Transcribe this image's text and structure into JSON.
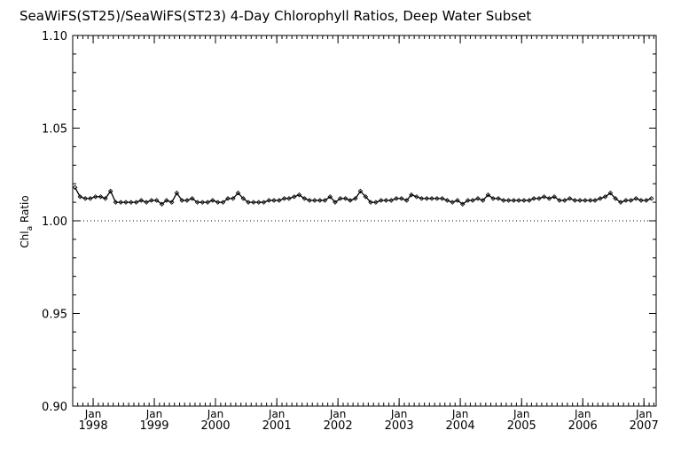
{
  "chart_data": {
    "type": "line",
    "title": "SeaWiFS(ST25)/SeaWiFS(ST23) 4-Day Chlorophyll Ratios, Deep Water Subset",
    "ylabel": "Chl",
    "ylabel_subscript": "a",
    "ylabel_suffix": " Ratio",
    "xlabel": "",
    "xlim": [
      "1997-09-01",
      "2007-03-15"
    ],
    "ylim": [
      0.9,
      1.1
    ],
    "yticks": [
      0.9,
      0.95,
      1.0,
      1.05,
      1.1
    ],
    "ytick_labels": [
      "0.90",
      "0.95",
      "1.00",
      "1.05",
      "1.10"
    ],
    "xticks": [
      {
        "date": "1998-01-01",
        "month": "Jan",
        "year": "1998"
      },
      {
        "date": "1999-01-01",
        "month": "Jan",
        "year": "1999"
      },
      {
        "date": "2000-01-01",
        "month": "Jan",
        "year": "2000"
      },
      {
        "date": "2001-01-01",
        "month": "Jan",
        "year": "2001"
      },
      {
        "date": "2002-01-01",
        "month": "Jan",
        "year": "2002"
      },
      {
        "date": "2003-01-01",
        "month": "Jan",
        "year": "2003"
      },
      {
        "date": "2004-01-01",
        "month": "Jan",
        "year": "2004"
      },
      {
        "date": "2005-01-01",
        "month": "Jan",
        "year": "2005"
      },
      {
        "date": "2006-01-01",
        "month": "Jan",
        "year": "2006"
      },
      {
        "date": "2007-01-01",
        "month": "Jan",
        "year": "2007"
      }
    ],
    "reference_line": {
      "y": 1.0,
      "style": "dotted"
    },
    "grid": false,
    "legend": "none",
    "line_color": "#000000",
    "marker": "diamond",
    "series": [
      {
        "x": [
          "1997-09-15",
          "1997-10-15",
          "1997-11-15",
          "1997-12-15",
          "1998-01-15",
          "1998-02-15",
          "1998-03-15",
          "1998-04-15",
          "1998-05-15",
          "1998-06-15",
          "1998-07-15",
          "1998-08-15",
          "1998-09-15",
          "1998-10-15",
          "1998-11-15",
          "1998-12-15",
          "1999-01-15",
          "1999-02-15",
          "1999-03-15",
          "1999-04-15",
          "1999-05-15",
          "1999-06-15",
          "1999-07-15",
          "1999-08-15",
          "1999-09-15",
          "1999-10-15",
          "1999-11-15",
          "1999-12-15",
          "2000-01-15",
          "2000-02-15",
          "2000-03-15",
          "2000-04-15",
          "2000-05-15",
          "2000-06-15",
          "2000-07-15",
          "2000-08-15",
          "2000-09-15",
          "2000-10-15",
          "2000-11-15",
          "2000-12-15",
          "2001-01-15",
          "2001-02-15",
          "2001-03-15",
          "2001-04-15",
          "2001-05-15",
          "2001-06-15",
          "2001-07-15",
          "2001-08-15",
          "2001-09-15",
          "2001-10-15",
          "2001-11-15",
          "2001-12-15",
          "2002-01-15",
          "2002-02-15",
          "2002-03-15",
          "2002-04-15",
          "2002-05-15",
          "2002-06-15",
          "2002-07-15",
          "2002-08-15",
          "2002-09-15",
          "2002-10-15",
          "2002-11-15",
          "2002-12-15",
          "2003-01-15",
          "2003-02-15",
          "2003-03-15",
          "2003-04-15",
          "2003-05-15",
          "2003-06-15",
          "2003-07-15",
          "2003-08-15",
          "2003-09-15",
          "2003-10-15",
          "2003-11-15",
          "2003-12-15",
          "2004-01-15",
          "2004-02-15",
          "2004-03-15",
          "2004-04-15",
          "2004-05-15",
          "2004-06-15",
          "2004-07-15",
          "2004-08-15",
          "2004-09-15",
          "2004-10-15",
          "2004-11-15",
          "2004-12-15",
          "2005-01-15",
          "2005-02-15",
          "2005-03-15",
          "2005-04-15",
          "2005-05-15",
          "2005-06-15",
          "2005-07-15",
          "2005-08-15",
          "2005-09-15",
          "2005-10-15",
          "2005-11-15",
          "2005-12-15",
          "2006-01-15",
          "2006-02-15",
          "2006-03-15",
          "2006-04-15",
          "2006-05-15",
          "2006-06-15",
          "2006-07-15",
          "2006-08-15",
          "2006-09-15",
          "2006-10-15",
          "2006-11-15",
          "2006-12-15",
          "2007-01-15",
          "2007-02-15"
        ],
        "y": [
          1.018,
          1.013,
          1.012,
          1.012,
          1.013,
          1.013,
          1.012,
          1.016,
          1.01,
          1.01,
          1.01,
          1.01,
          1.01,
          1.011,
          1.01,
          1.011,
          1.011,
          1.009,
          1.011,
          1.01,
          1.015,
          1.011,
          1.011,
          1.012,
          1.01,
          1.01,
          1.01,
          1.011,
          1.01,
          1.01,
          1.012,
          1.012,
          1.015,
          1.012,
          1.01,
          1.01,
          1.01,
          1.01,
          1.011,
          1.011,
          1.011,
          1.012,
          1.012,
          1.013,
          1.014,
          1.012,
          1.011,
          1.011,
          1.011,
          1.011,
          1.013,
          1.01,
          1.012,
          1.012,
          1.011,
          1.012,
          1.016,
          1.013,
          1.01,
          1.01,
          1.011,
          1.011,
          1.011,
          1.012,
          1.012,
          1.011,
          1.014,
          1.013,
          1.012,
          1.012,
          1.012,
          1.012,
          1.012,
          1.011,
          1.01,
          1.011,
          1.009,
          1.011,
          1.011,
          1.012,
          1.011,
          1.014,
          1.012,
          1.012,
          1.011,
          1.011,
          1.011,
          1.011,
          1.011,
          1.011,
          1.012,
          1.012,
          1.013,
          1.012,
          1.013,
          1.011,
          1.011,
          1.012,
          1.011,
          1.011,
          1.011,
          1.011,
          1.011,
          1.012,
          1.013,
          1.015,
          1.012,
          1.01,
          1.011,
          1.011,
          1.012,
          1.011,
          1.011,
          1.012
        ]
      }
    ]
  }
}
